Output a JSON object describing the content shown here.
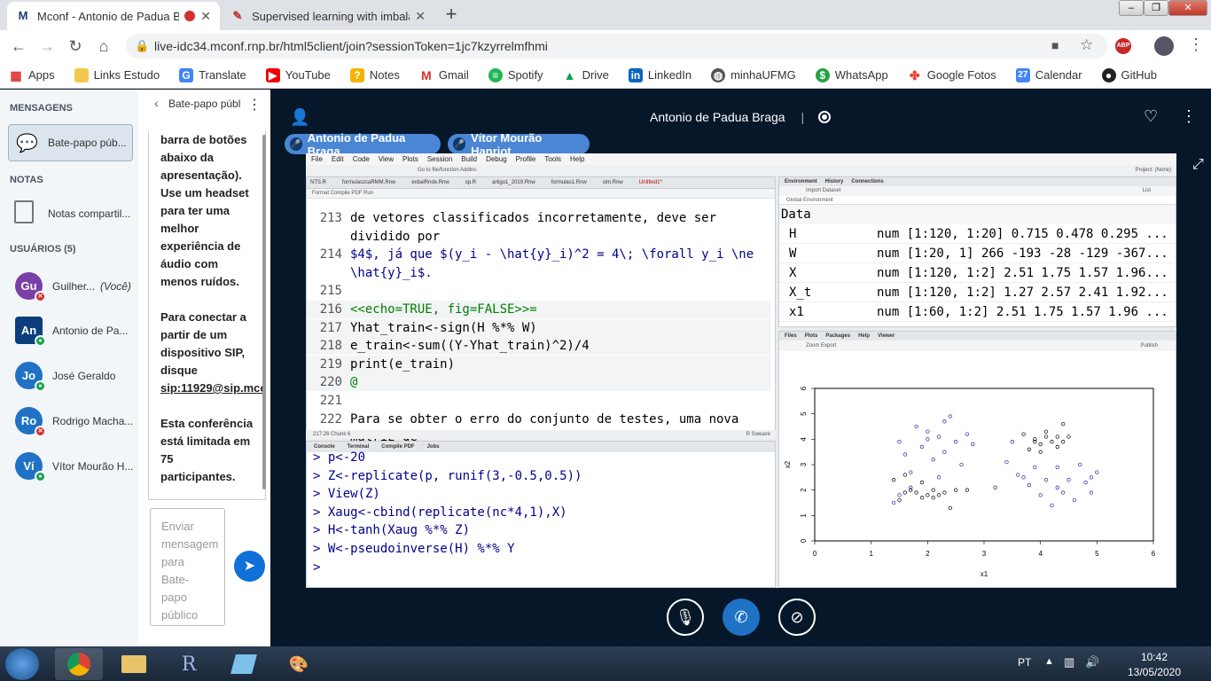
{
  "browser": {
    "tabs": [
      {
        "favicon": "M",
        "title": "Mconf - Antonio de Padua B",
        "recording": true
      },
      {
        "favicon": "✎",
        "title": "Supervised learning with imbalan"
      }
    ],
    "url": "live-idc34.mconf.rnp.br/html5client/join?sessionToken=1jc7kzyrrelmfhmi",
    "bookmarks": [
      "Apps",
      "Links Estudo",
      "Translate",
      "YouTube",
      "Notes",
      "Gmail",
      "Spotify",
      "Drive",
      "LinkedIn",
      "minhaUFMG",
      "WhatsApp",
      "Google Fotos",
      "Calendar",
      "GitHub"
    ],
    "calendar_day": "27"
  },
  "sidebar": {
    "messages_heading": "MENSAGENS",
    "chat_item": "Bate-papo púb...",
    "notes_heading": "NOTAS",
    "notes_item": "Notas compartil...",
    "users_heading": "USUÁRIOS (5)",
    "users": [
      {
        "initials": "Gu",
        "name": "Guilher...",
        "suffix": "(Você)",
        "color": "#7b3fa8",
        "mic": "muted"
      },
      {
        "initials": "An",
        "name": "Antonio de Pa...",
        "suffix": "",
        "color": "#0d3e7c",
        "mic": "on"
      },
      {
        "initials": "Jo",
        "name": "José Geraldo",
        "suffix": "",
        "color": "#1f72c4",
        "mic": "on"
      },
      {
        "initials": "Ro",
        "name": "Rodrigo Macha...",
        "suffix": "",
        "color": "#1f72c4",
        "mic": "muted"
      },
      {
        "initials": "Ví",
        "name": "Vítor Mourão H...",
        "suffix": "",
        "color": "#1f72c4",
        "mic": "on"
      }
    ]
  },
  "chat": {
    "header": "Bate-papo públ",
    "message_lines": [
      "barra de botões",
      "abaixo da",
      "apresentação).",
      "Use um headset",
      "para ter uma",
      "melhor",
      "experiência de",
      "áudio com",
      "menos ruídos.",
      "",
      "Para conectar a",
      "partir de um",
      "dispositivo SIP,",
      "disque",
      "sip:11929@sip.mco",
      "",
      "Esta conferência",
      "está limitada em",
      "75",
      "participantes."
    ],
    "input_placeholder": "Enviar mensagem para Bate-papo público"
  },
  "presentation": {
    "presenter": "Antonio de Padua Braga",
    "talkers": [
      "Antonio de Padua Braga",
      "Vítor Mourão Hanriot"
    ]
  },
  "rstudio": {
    "menu": [
      "File",
      "Edit",
      "Code",
      "View",
      "Plots",
      "Session",
      "Build",
      "Debug",
      "Profile",
      "Tools",
      "Help"
    ],
    "toolbar_text": "Go to file/function      Addins",
    "project": "Project: (None)",
    "editor_tabs": [
      "NTS.R",
      "formulaszcaRMM.Rnw",
      "exbalRnde.Rnw",
      "sp.R",
      "artigo1_2019.Rnw",
      "formulas1.Rnw",
      "slm.Rnw",
      "Untitled1*"
    ],
    "editor_tools": "Format    Compile PDF         Run",
    "code_lines": [
      {
        "n": "213",
        "text": "de vetores classificados incorretamente, deve ser",
        "style": "text"
      },
      {
        "n": "",
        "text": "dividido por",
        "style": "text"
      },
      {
        "n": "214",
        "text": "$4$, já que $(y_i - \\hat{y}_i)^2 = 4\\; \\forall y_i \\ne",
        "style": "latex"
      },
      {
        "n": "",
        "text": "\\hat{y}_i$.",
        "style": "latex"
      },
      {
        "n": "215",
        "text": "",
        "style": "text"
      },
      {
        "n": "216",
        "text": "<<echo=TRUE, fig=FALSE>>=",
        "style": "chunkhead"
      },
      {
        "n": "217",
        "text": "Yhat_train<-sign(H %*% W)",
        "style": "chunk"
      },
      {
        "n": "218",
        "text": "e_train<-sum((Y-Yhat_train)^2)/4",
        "style": "chunk"
      },
      {
        "n": "219",
        "text": "print(e_train)",
        "style": "chunk"
      },
      {
        "n": "220",
        "text": "@",
        "style": "chunkend"
      },
      {
        "n": "221",
        "text": "",
        "style": "text"
      },
      {
        "n": "222",
        "text": "Para se obter o erro do conjunto de testes, uma nova",
        "style": "text"
      },
      {
        "n": "",
        "text": "matriz de",
        "style": "text"
      }
    ],
    "editor_status": "217:26   Chunk 6",
    "editor_mode": "R Sweave",
    "console_tabs": [
      "Console",
      "Terminal",
      "Compile PDF",
      "Jobs"
    ],
    "console_lines": [
      "> p<-20",
      "> Z<-replicate(p, runif(3,-0.5,0.5))",
      "> View(Z)",
      "> Xaug<-cbind(replicate(nc*4,1),X)",
      "> H<-tanh(Xaug %*% Z)",
      "> W<-pseudoinverse(H) %*% Y",
      "> "
    ],
    "env_tabs": [
      "Environment",
      "History",
      "Connections"
    ],
    "env_tools": "Import Dataset",
    "env_scope": "Global Environment",
    "env_list_label": "List",
    "env_section": "Data",
    "env_rows": [
      {
        "name": "H",
        "value": "num [1:120, 1:20] 0.715 0.478 0.295 ..."
      },
      {
        "name": "W",
        "value": "num [1:20, 1] 266 -193 -28 -129 -367..."
      },
      {
        "name": "X",
        "value": "num [1:120, 1:2] 2.51 1.75 1.57 1.96..."
      },
      {
        "name": "X_t",
        "value": "num [1:120, 1:2] 1.27 2.57 2.41 1.92..."
      },
      {
        "name": "x1",
        "value": "num [1:60, 1:2] 2.51 1.75 1.57 1.96 ..."
      }
    ],
    "plot_tabs": [
      "Files",
      "Plots",
      "Packages",
      "Help",
      "Viewer"
    ],
    "plot_tools": "Zoom    Export",
    "plot_publish": "Publish"
  },
  "chart_data": {
    "type": "scatter",
    "xlabel": "x1",
    "ylabel": "x2",
    "xlim": [
      0,
      6
    ],
    "ylim": [
      0,
      6
    ],
    "x_ticks": [
      0,
      1,
      2,
      3,
      4,
      5,
      6
    ],
    "y_ticks": [
      0,
      1,
      2,
      3,
      4,
      5,
      6
    ],
    "grid": false,
    "colors": {
      "class_a": "#000000",
      "class_b": "#2222aa"
    },
    "series": [
      {
        "values": [
          [
            1.4,
            2.4
          ],
          [
            1.5,
            1.6
          ],
          [
            1.6,
            2.6
          ],
          [
            1.7,
            2.0
          ],
          [
            1.8,
            1.9
          ],
          [
            1.9,
            1.7
          ],
          [
            2.0,
            1.8
          ],
          [
            2.1,
            2.0
          ],
          [
            2.2,
            1.8
          ],
          [
            2.3,
            1.9
          ],
          [
            2.4,
            1.3
          ],
          [
            2.5,
            2.0
          ],
          [
            1.6,
            1.9
          ],
          [
            1.9,
            2.3
          ],
          [
            2.1,
            1.7
          ],
          [
            2.7,
            2.0
          ],
          [
            3.8,
            3.6
          ],
          [
            3.9,
            4.0
          ],
          [
            4.0,
            3.8
          ],
          [
            4.1,
            4.1
          ],
          [
            4.2,
            3.9
          ],
          [
            4.3,
            3.7
          ],
          [
            4.4,
            3.9
          ],
          [
            4.1,
            4.3
          ],
          [
            3.7,
            4.2
          ],
          [
            4.0,
            3.5
          ],
          [
            4.4,
            4.6
          ],
          [
            4.5,
            4.1
          ],
          [
            3.9,
            3.9
          ],
          [
            4.3,
            4.1
          ]
        ]
      },
      {
        "values": [
          [
            1.5,
            3.9
          ],
          [
            1.6,
            3.4
          ],
          [
            1.7,
            2.1
          ],
          [
            1.8,
            4.5
          ],
          [
            1.9,
            3.7
          ],
          [
            2.0,
            4.3
          ],
          [
            2.1,
            3.2
          ],
          [
            2.2,
            4.1
          ],
          [
            2.3,
            3.5
          ],
          [
            2.4,
            4.9
          ],
          [
            2.5,
            3.9
          ],
          [
            2.6,
            3.0
          ],
          [
            2.7,
            4.2
          ],
          [
            2.8,
            3.8
          ],
          [
            1.4,
            1.5
          ],
          [
            1.5,
            1.8
          ],
          [
            1.7,
            2.7
          ],
          [
            2.2,
            2.5
          ],
          [
            2.3,
            4.7
          ],
          [
            2.0,
            4.0
          ],
          [
            3.2,
            2.1
          ],
          [
            3.4,
            3.1
          ],
          [
            3.5,
            3.9
          ],
          [
            3.6,
            2.6
          ],
          [
            3.8,
            2.2
          ],
          [
            3.9,
            2.9
          ],
          [
            4.0,
            1.8
          ],
          [
            4.1,
            2.4
          ],
          [
            4.2,
            1.4
          ],
          [
            4.3,
            2.9
          ],
          [
            4.4,
            1.9
          ],
          [
            4.5,
            2.4
          ],
          [
            4.6,
            1.6
          ],
          [
            4.7,
            3.0
          ],
          [
            4.8,
            2.3
          ],
          [
            4.9,
            1.9
          ],
          [
            5.0,
            2.7
          ],
          [
            4.3,
            2.1
          ],
          [
            3.7,
            2.5
          ],
          [
            4.9,
            2.5
          ]
        ]
      }
    ]
  }
}
